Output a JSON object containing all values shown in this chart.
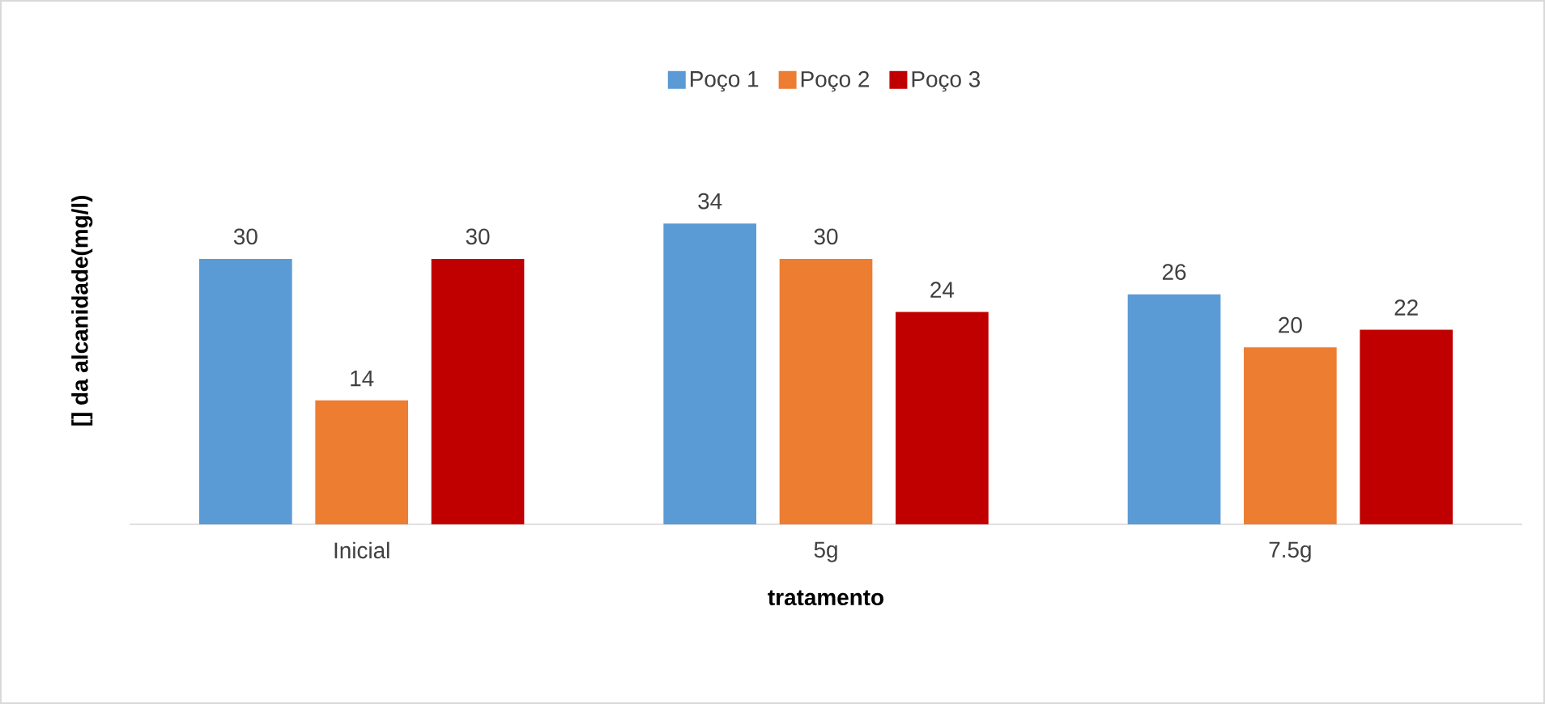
{
  "chart_data": {
    "type": "bar",
    "xlabel": "tratamento",
    "ylabel": "[] da alcanidade(mg/l)",
    "categories": [
      "Inicial",
      "5g",
      "7.5g"
    ],
    "series": [
      {
        "name": "Poço 1",
        "color": "#5b9bd5",
        "values": [
          30,
          34,
          26
        ]
      },
      {
        "name": "Poço 2",
        "color": "#ed7d31",
        "values": [
          14,
          30,
          20
        ]
      },
      {
        "name": "Poço 3",
        "color": "#c00000",
        "values": [
          30,
          24,
          22
        ]
      }
    ],
    "data_labels": true,
    "legend": "top"
  }
}
